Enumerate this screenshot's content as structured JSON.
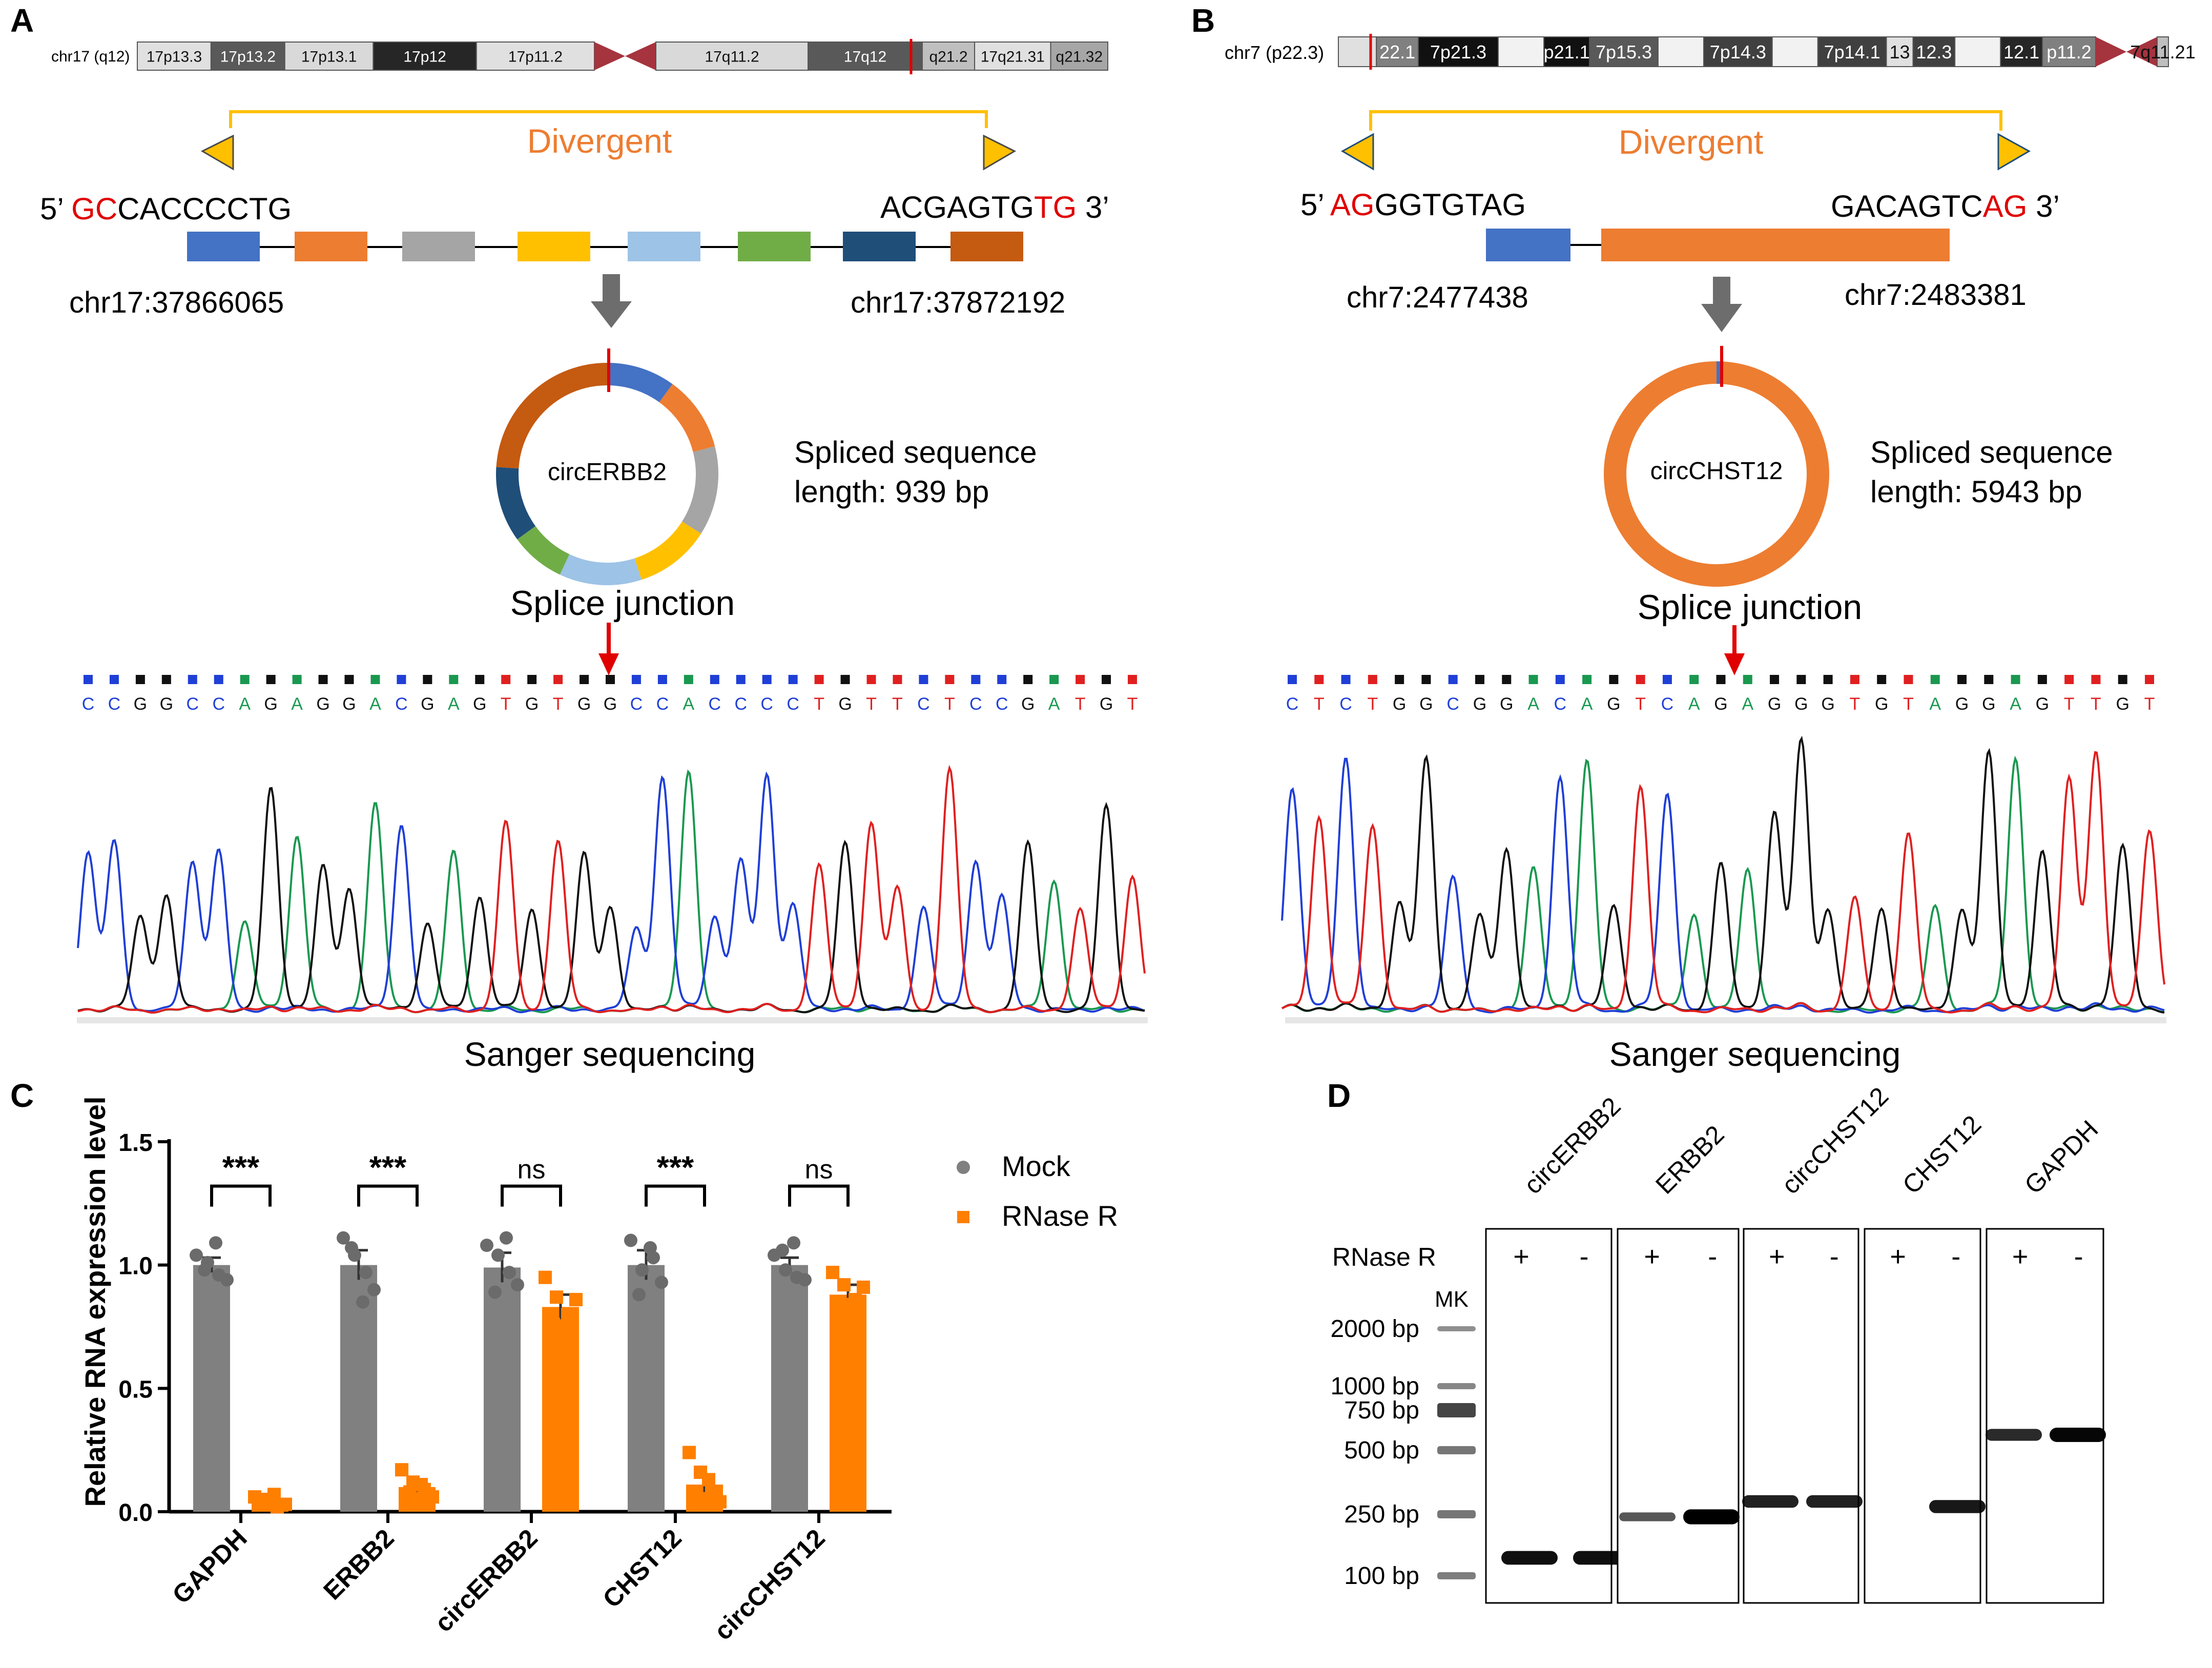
{
  "colors": {
    "blue": "#4472c4",
    "orange": "#ed7d31",
    "gray": "#a5a5a5",
    "yellow": "#ffc000",
    "lightblue": "#9dc3e6",
    "green": "#70ad47",
    "navy": "#1f4e79",
    "brown": "#c55a11",
    "red": "#e00000",
    "mock": "#808080",
    "rnase": "#ff7f00",
    "arrow": "#6d6d6d",
    "divergent": "#ed7d31",
    "bracket": "#ffc000",
    "centromere": "#a5343e",
    "baseA": "#1a9850",
    "baseC": "#1f3fd6",
    "baseG": "#111111",
    "baseT": "#e02020"
  },
  "panels": {
    "a": "A",
    "b": "B",
    "c": "C",
    "d": "D"
  },
  "panelA": {
    "ideogram": {
      "label": "chr17 (q12)",
      "p_bands": [
        {
          "name": "17p13.3",
          "shade": "#e0e0e0"
        },
        {
          "name": "17p13.2",
          "shade": "#595959"
        },
        {
          "name": "17p13.1",
          "shade": "#d9d9d9"
        },
        {
          "name": "17p12",
          "shade": "#262626"
        },
        {
          "name": "17p11.2",
          "shade": "#e0e0e0"
        }
      ],
      "q_bands": [
        {
          "name": "17q11.2",
          "shade": "#d9d9d9"
        },
        {
          "name": "17q12",
          "shade": "#595959"
        },
        {
          "name": "q21.2",
          "shade": "#bfbfbf"
        },
        {
          "name": "17q21.31",
          "shade": "#e0e0e0"
        },
        {
          "name": "q21.32",
          "shade": "#a6a6a6"
        }
      ]
    },
    "divergent": "Divergent",
    "seq_left_prime": "5’ ",
    "seq_left_red": "GC",
    "seq_left_black": "CACCCCTG",
    "seq_right_black": "ACGAGTG",
    "seq_right_red": "TG",
    "seq_right_prime": " 3’",
    "coord_left": "chr17:37866065",
    "coord_right": "chr17:37872192",
    "exon_colors": [
      "blue",
      "orange",
      "gray",
      "yellow",
      "lightblue",
      "green",
      "navy",
      "brown"
    ],
    "ring_label": "circERBB2",
    "ring_segments": [
      {
        "color": "blue",
        "value": 1
      },
      {
        "color": "orange",
        "value": 1.1
      },
      {
        "color": "gray",
        "value": 1.3
      },
      {
        "color": "yellow",
        "value": 1.1
      },
      {
        "color": "lightblue",
        "value": 1.2
      },
      {
        "color": "green",
        "value": 0.8
      },
      {
        "color": "navy",
        "value": 1.1
      },
      {
        "color": "brown",
        "value": 2.4
      }
    ],
    "spliced_line1": "Spliced sequence",
    "spliced_line2": "length: 939 bp",
    "junction": "Splice junction",
    "sequence": "CCGGCCAGAGGACGAGTGTGGCCACCCCTGTTCTCCGATGT",
    "sanger": "Sanger sequencing"
  },
  "panelB": {
    "ideogram": {
      "label": "chr7 (p22.3)",
      "p_bands": [
        {
          "name": "",
          "shade": "#e0e0e0"
        },
        {
          "name": "22.1",
          "shade": "#808080"
        },
        {
          "name": "7p21.3",
          "shade": "#111111"
        },
        {
          "name": "",
          "shade": "#f2f2f2"
        },
        {
          "name": "p21.1",
          "shade": "#111111"
        },
        {
          "name": "7p15.3",
          "shade": "#595959"
        },
        {
          "name": "",
          "shade": "#f2f2f2"
        },
        {
          "name": "7p14.3",
          "shade": "#404040"
        },
        {
          "name": "",
          "shade": "#f2f2f2"
        },
        {
          "name": "7p14.1",
          "shade": "#404040"
        },
        {
          "name": "13",
          "shade": "#e0e0e0"
        },
        {
          "name": "12.3",
          "shade": "#404040"
        },
        {
          "name": "",
          "shade": "#f2f2f2"
        },
        {
          "name": "12.1",
          "shade": "#262626"
        },
        {
          "name": "p11.2",
          "shade": "#808080"
        }
      ],
      "q_bands": [
        {
          "name": "7q11.21",
          "shade": "#bfbfbf"
        }
      ]
    },
    "divergent": "Divergent",
    "seq_left_prime": "5’ ",
    "seq_left_red": "AG",
    "seq_left_black": "GGTGTAG",
    "seq_right_black": "GACAGTC",
    "seq_right_red": "AG",
    "seq_right_prime": " 3’",
    "coord_left": "chr7:2477438",
    "coord_right": "chr7:2483381",
    "ring_label": "circCHST12",
    "ring_segments": [
      {
        "color": "blue",
        "value": 0.06
      },
      {
        "color": "orange",
        "value": 5.88
      }
    ],
    "spliced_line1": "Spliced sequence",
    "spliced_line2": "length: 5943 bp",
    "junction": "Splice junction",
    "sequence": "CTCTGGCGGACAGTCAGAGGGTGTAGGAGTTGT",
    "sanger": "Sanger sequencing"
  },
  "chart_data": {
    "type": "bar",
    "ylabel": "Relative RNA expression level",
    "ylim": [
      0,
      1.5
    ],
    "yticks": [
      "0.0",
      "0.5",
      "1.0",
      "1.5"
    ],
    "categories": [
      "GAPDH",
      "ERBB2",
      "circERBB2",
      "CHST12",
      "circCHST12"
    ],
    "series": [
      {
        "name": "Mock",
        "values": [
          1.0,
          1.0,
          0.99,
          1.0,
          1.0
        ],
        "errors": [
          0.03,
          0.06,
          0.06,
          0.06,
          0.03
        ],
        "points": [
          [
            1.04,
            1.01,
            0.96,
            0.98,
            1.09,
            0.94
          ],
          [
            1.11,
            1.04,
            0.97,
            1.07,
            0.85,
            0.9
          ],
          [
            1.08,
            1.04,
            0.97,
            0.89,
            1.11,
            0.92
          ],
          [
            1.1,
            0.98,
            1.03,
            0.88,
            1.07,
            0.93
          ],
          [
            1.04,
            0.98,
            0.95,
            1.06,
            1.09,
            0.94
          ]
        ]
      },
      {
        "name": "RNase R",
        "values": [
          0.04,
          0.1,
          0.83,
          0.11,
          0.88
        ],
        "errors": [
          0.01,
          0.02,
          0.05,
          0.03,
          0.04
        ],
        "points": [
          [
            0.06,
            0.03,
            0.02,
            0.05,
            0.07,
            0.03
          ],
          [
            0.17,
            0.12,
            0.09,
            0.08,
            0.11,
            0.06
          ],
          [
            0.95,
            0.87,
            0.8,
            0.76,
            0.72,
            0.86
          ],
          [
            0.24,
            0.16,
            0.08,
            0.05,
            0.13,
            0.04
          ],
          [
            0.97,
            0.92,
            0.86,
            0.79,
            0.84,
            0.91
          ]
        ]
      }
    ],
    "significance": [
      "***",
      "***",
      "ns",
      "***",
      "ns"
    ],
    "legend": [
      "Mock",
      "RNase R"
    ]
  },
  "panelD": {
    "rnase_label": "RNase R",
    "mk_label": "MK",
    "ladder": [
      "2000 bp",
      "1000 bp",
      "750 bp",
      "500 bp",
      "250 bp",
      "100 bp"
    ],
    "lanes": [
      {
        "name": "circERBB2",
        "signs": [
          "+",
          "-"
        ]
      },
      {
        "name": "ERBB2",
        "signs": [
          "+",
          "-"
        ]
      },
      {
        "name": "circCHST12",
        "signs": [
          "+",
          "-"
        ]
      },
      {
        "name": "CHST12",
        "signs": [
          "+",
          "-"
        ]
      },
      {
        "name": "GAPDH",
        "signs": [
          "+",
          "-"
        ]
      }
    ]
  }
}
